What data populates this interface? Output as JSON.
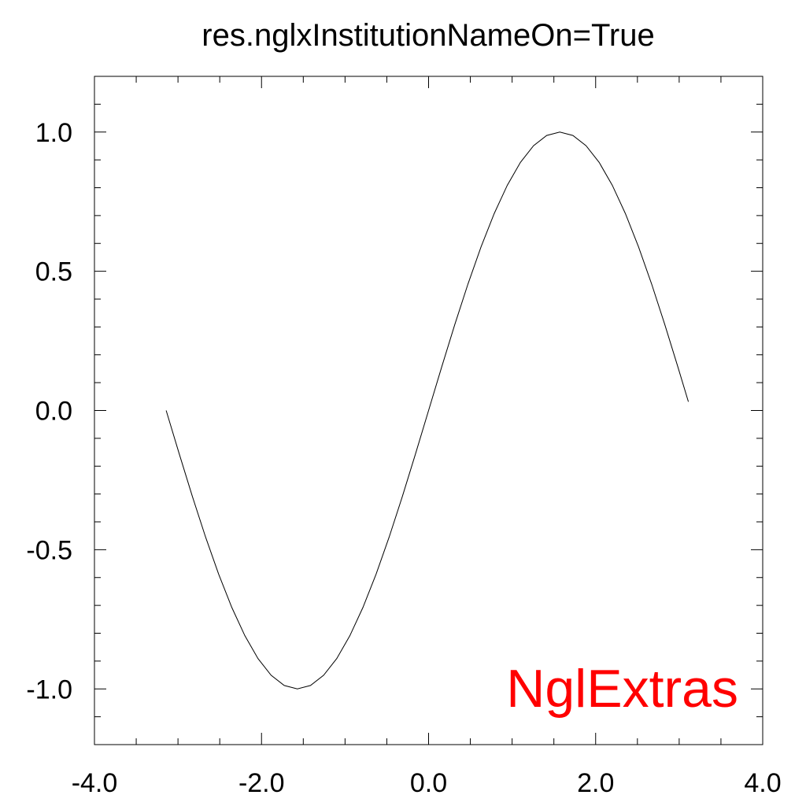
{
  "chart_data": {
    "type": "line",
    "title": "res.nglxInstitutionNameOn=True",
    "annotation": {
      "text": "NglExtras",
      "color": "#ff0000"
    },
    "xlim": [
      -4.0,
      4.0
    ],
    "ylim": [
      -1.2,
      1.2
    ],
    "x_ticks": [
      -4.0,
      -2.0,
      0.0,
      2.0,
      4.0
    ],
    "x_tick_labels": [
      "-4.0",
      "-2.0",
      "0.0",
      "2.0",
      "4.0"
    ],
    "y_ticks": [
      -1.0,
      -0.5,
      0.0,
      0.5,
      1.0
    ],
    "y_tick_labels": [
      "-1.0",
      "-0.5",
      "0.0",
      "0.5",
      "1.0"
    ],
    "x_minor_step": 0.5,
    "y_minor_step": 0.1,
    "grid": false,
    "series": [
      {
        "line_color": "#000000",
        "x": [
          -3.1416,
          -2.9845,
          -2.8274,
          -2.6704,
          -2.5133,
          -2.3562,
          -2.1991,
          -2.042,
          -1.885,
          -1.7279,
          -1.5708,
          -1.4137,
          -1.2566,
          -1.0996,
          -0.9425,
          -0.7854,
          -0.6283,
          -0.4712,
          -0.3142,
          -0.1571,
          0.0,
          0.1571,
          0.3142,
          0.4712,
          0.6283,
          0.7854,
          0.9425,
          1.0996,
          1.2566,
          1.4137,
          1.5708,
          1.7279,
          1.885,
          2.042,
          2.1991,
          2.3562,
          2.5133,
          2.6704,
          2.8274,
          2.9845,
          3.1102
        ],
        "y": [
          0.0,
          -0.1564,
          -0.309,
          -0.454,
          -0.5878,
          -0.7071,
          -0.809,
          -0.891,
          -0.9511,
          -0.9877,
          -1.0,
          -0.9877,
          -0.9511,
          -0.891,
          -0.809,
          -0.7071,
          -0.5878,
          -0.454,
          -0.309,
          -0.1564,
          0.0,
          0.1564,
          0.309,
          0.454,
          0.5878,
          0.7071,
          0.809,
          0.891,
          0.9511,
          0.9877,
          1.0,
          0.9877,
          0.9511,
          0.891,
          0.809,
          0.7071,
          0.5878,
          0.454,
          0.309,
          0.1564,
          0.0314
        ]
      }
    ]
  }
}
